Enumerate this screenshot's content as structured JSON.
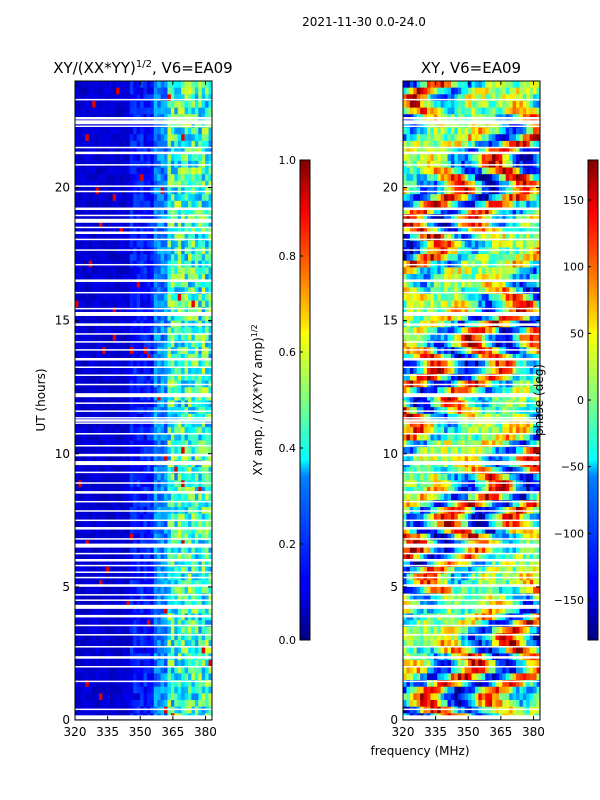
{
  "figure": {
    "suptitle": "2021-11-30 0.0-24.0"
  },
  "chart_data": [
    {
      "type": "heatmap",
      "title": "XY/(XX*YY)^1/2, V6=EA09",
      "title_main": "XY/(XX*YY)",
      "title_sup": "1/2",
      "title_tail": ", V6=EA09",
      "xlabel": "",
      "ylabel": "UT (hours)",
      "xlim": [
        320,
        383
      ],
      "ylim": [
        0,
        24
      ],
      "xticks": [
        320,
        335,
        350,
        365,
        380
      ],
      "yticks": [
        0,
        5,
        10,
        15,
        20
      ],
      "colormap": "jet",
      "colorbar": {
        "label_main": "XY amp. / (XX*YY amp)",
        "label_sup": "1/2",
        "vmin": 0.0,
        "vmax": 1.0,
        "ticks": [
          "0.0",
          "0.2",
          "0.4",
          "0.6",
          "0.8",
          "1.0"
        ]
      }
    },
    {
      "type": "heatmap",
      "title": "XY, V6=EA09",
      "xlabel": "frequency (MHz)",
      "ylabel": "",
      "xlim": [
        320,
        383
      ],
      "ylim": [
        0,
        24
      ],
      "xticks": [
        320,
        335,
        350,
        365,
        380
      ],
      "yticks": [
        0,
        5,
        10,
        15,
        20
      ],
      "colormap": "jet",
      "colorbar": {
        "label": "phase (deg)",
        "vmin": -180,
        "vmax": 180,
        "ticks": [
          "−150",
          "−100",
          "−50",
          "0",
          "50",
          "100",
          "150"
        ]
      }
    }
  ],
  "flagged_ut_gaps": [
    0.1,
    0.4,
    1.45,
    2.0,
    2.35,
    2.75,
    3.2,
    3.55,
    3.9,
    4.25,
    4.5,
    4.7,
    5.05,
    5.35,
    5.55,
    5.8,
    6.0,
    6.25,
    6.55,
    6.8,
    7.2,
    7.5,
    7.85,
    8.2,
    8.55,
    8.9,
    9.3,
    9.65,
    9.95,
    10.3,
    10.75,
    11.15,
    11.25,
    11.35,
    11.6,
    11.9,
    12.2,
    12.6,
    12.95,
    13.25,
    13.55,
    13.9,
    14.2,
    14.5,
    14.85,
    15.25,
    15.45,
    16.05,
    16.5,
    17.1,
    17.65,
    18.05,
    18.3,
    18.5,
    18.75,
    18.95,
    19.2,
    19.85,
    20.05,
    20.85,
    21.3,
    21.5,
    22.3,
    22.45,
    22.6,
    23.3
  ]
}
